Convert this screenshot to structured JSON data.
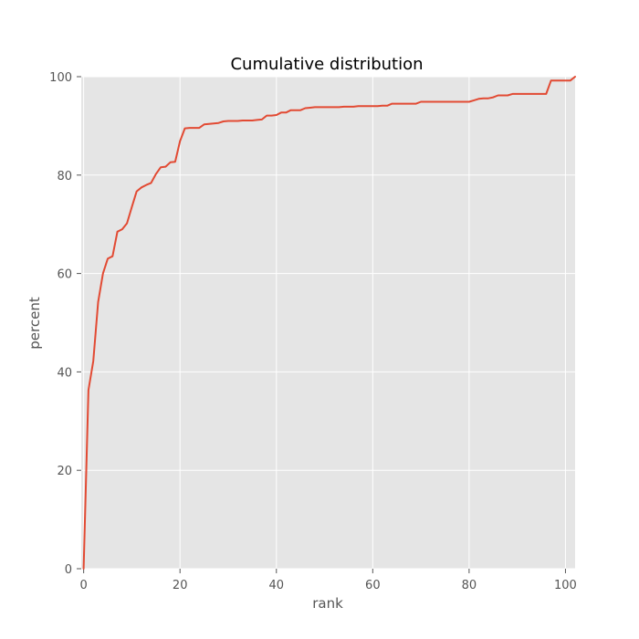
{
  "chart_data": {
    "type": "line",
    "title": "Cumulative distribution",
    "xlabel": "rank",
    "ylabel": "percent",
    "xlim": [
      -0.5,
      102
    ],
    "ylim": [
      0,
      100
    ],
    "xticks": [
      0,
      20,
      40,
      60,
      80,
      100
    ],
    "yticks": [
      0,
      20,
      40,
      60,
      80,
      100
    ],
    "grid": true,
    "background": "#e5e5e5",
    "line_color": "#e24a33",
    "series": [
      {
        "x": [
          0,
          1,
          2,
          3,
          4,
          5,
          6,
          7,
          8,
          9,
          10,
          11,
          12,
          13,
          14,
          15,
          16,
          17,
          18,
          19,
          20,
          21,
          22,
          23,
          24,
          25,
          26,
          27,
          28,
          29,
          30,
          31,
          32,
          33,
          34,
          35,
          36,
          37,
          38,
          39,
          40,
          41,
          42,
          43,
          44,
          45,
          46,
          47,
          48,
          49,
          50,
          51,
          52,
          53,
          54,
          55,
          56,
          57,
          58,
          59,
          60,
          61,
          62,
          63,
          64,
          65,
          66,
          67,
          68,
          69,
          70,
          71,
          72,
          73,
          74,
          75,
          76,
          77,
          78,
          79,
          80,
          81,
          82,
          83,
          84,
          85,
          86,
          87,
          88,
          89,
          90,
          91,
          92,
          93,
          94,
          95,
          96,
          97,
          98,
          99,
          100,
          101,
          102
        ],
        "y": [
          0,
          36.3,
          42.2,
          54.2,
          60.0,
          63.0,
          63.5,
          68.5,
          69.0,
          70.2,
          73.5,
          76.7,
          77.5,
          78.0,
          78.4,
          80.2,
          81.6,
          81.7,
          82.6,
          82.7,
          86.9,
          89.5,
          89.6,
          89.6,
          89.6,
          90.3,
          90.4,
          90.5,
          90.6,
          90.9,
          91.0,
          91.0,
          91.0,
          91.1,
          91.1,
          91.1,
          91.2,
          91.3,
          92.1,
          92.1,
          92.2,
          92.7,
          92.7,
          93.2,
          93.2,
          93.2,
          93.6,
          93.7,
          93.8,
          93.8,
          93.8,
          93.8,
          93.8,
          93.8,
          93.9,
          93.9,
          93.9,
          94.0,
          94.0,
          94.0,
          94.0,
          94.0,
          94.1,
          94.1,
          94.5,
          94.5,
          94.5,
          94.5,
          94.5,
          94.5,
          94.9,
          94.9,
          94.9,
          94.9,
          94.9,
          94.9,
          94.9,
          94.9,
          94.9,
          94.9,
          94.9,
          95.2,
          95.5,
          95.6,
          95.6,
          95.8,
          96.2,
          96.2,
          96.2,
          96.5,
          96.5,
          96.5,
          96.5,
          96.5,
          96.5,
          96.5,
          96.5,
          99.2,
          99.2,
          99.2,
          99.2,
          99.2,
          100.0
        ]
      }
    ]
  }
}
